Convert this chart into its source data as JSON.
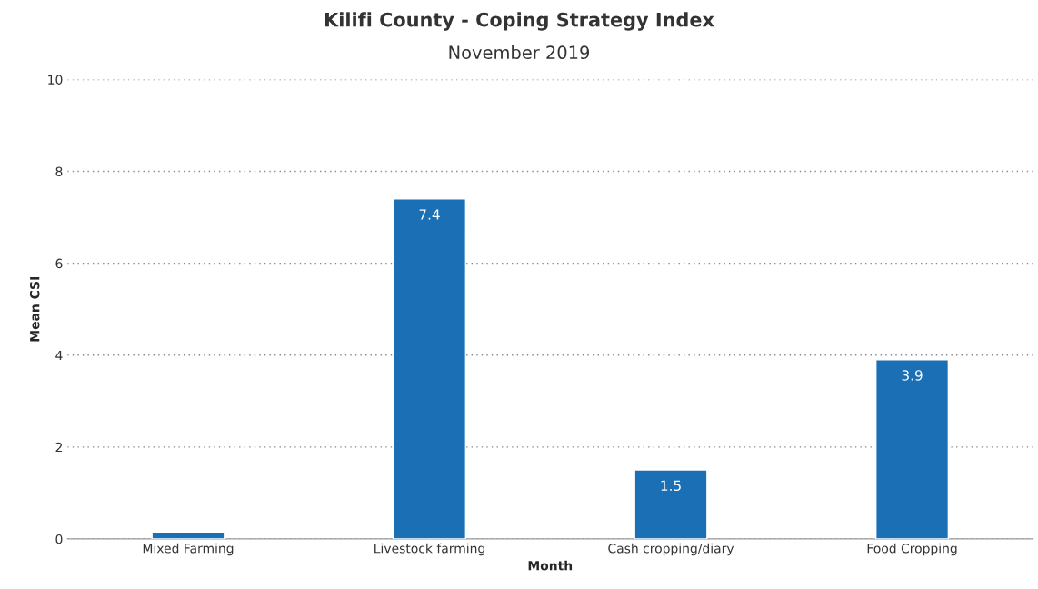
{
  "chart_data": {
    "type": "bar",
    "title": "Kilifi County - Coping Strategy Index",
    "subtitle": "November 2019",
    "xlabel": "Month",
    "ylabel": "Mean CSI",
    "categories": [
      "Mixed Farming",
      "Livestock farming",
      "Cash cropping/diary",
      "Food Cropping"
    ],
    "values": [
      0.15,
      7.4,
      1.5,
      3.9
    ],
    "value_labels": [
      null,
      "7.4",
      "1.5",
      "3.9"
    ],
    "color": "#1a6fb5",
    "ylim": [
      0,
      10
    ],
    "yticks": [
      0,
      2,
      4,
      6,
      8,
      10
    ],
    "grid": "y"
  }
}
